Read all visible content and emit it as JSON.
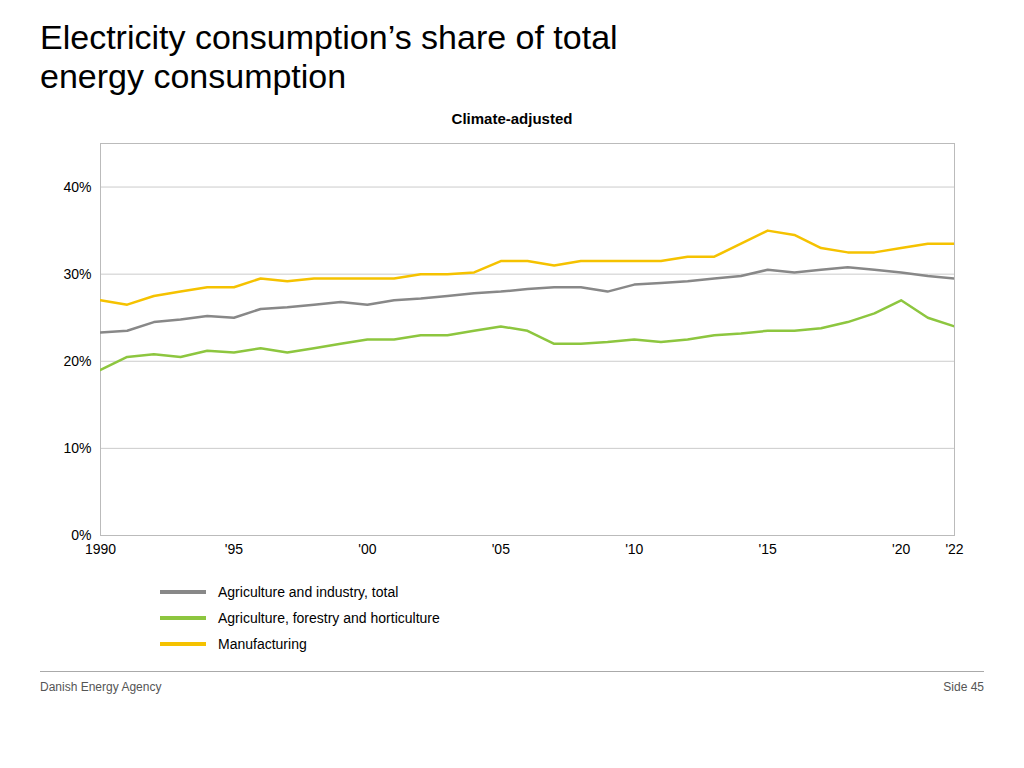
{
  "chart_data": {
    "type": "line",
    "title": "Electricity consumption’s share of total\nenergy consumption",
    "subtitle": "Climate-adjusted",
    "x": [
      1990,
      1991,
      1992,
      1993,
      1994,
      1995,
      1996,
      1997,
      1998,
      1999,
      2000,
      2001,
      2002,
      2003,
      2004,
      2005,
      2006,
      2007,
      2008,
      2009,
      2010,
      2011,
      2012,
      2013,
      2014,
      2015,
      2016,
      2017,
      2018,
      2019,
      2020,
      2021,
      2022
    ],
    "series": [
      {
        "name": "Agriculture and industry, total",
        "color": "#888888",
        "values": [
          23.3,
          23.5,
          24.5,
          24.8,
          25.2,
          25.0,
          26.0,
          26.2,
          26.5,
          26.8,
          26.5,
          27.0,
          27.2,
          27.5,
          27.8,
          28.0,
          28.3,
          28.5,
          28.5,
          28.0,
          28.8,
          29.0,
          29.2,
          29.5,
          29.8,
          30.5,
          30.2,
          30.5,
          30.8,
          30.5,
          30.2,
          29.8,
          29.5
        ]
      },
      {
        "name": "Agriculture, forestry and horticulture",
        "color": "#8dc63f",
        "values": [
          19.0,
          20.5,
          20.8,
          20.5,
          21.2,
          21.0,
          21.5,
          21.0,
          21.5,
          22.0,
          22.5,
          22.5,
          23.0,
          23.0,
          23.5,
          24.0,
          23.5,
          22.0,
          22.0,
          22.2,
          22.5,
          22.2,
          22.5,
          23.0,
          23.2,
          23.5,
          23.5,
          23.8,
          24.5,
          25.5,
          27.0,
          25.0,
          24.0
        ]
      },
      {
        "name": "Manufacturing",
        "color": "#f5c200",
        "values": [
          27.0,
          26.5,
          27.5,
          28.0,
          28.5,
          28.5,
          29.5,
          29.2,
          29.5,
          29.5,
          29.5,
          29.5,
          30.0,
          30.0,
          30.2,
          31.5,
          31.5,
          31.0,
          31.5,
          31.5,
          31.5,
          31.5,
          32.0,
          32.0,
          33.5,
          35.0,
          34.5,
          33.0,
          32.5,
          32.5,
          33.0,
          33.5,
          33.5
        ]
      }
    ],
    "xlim": [
      1990,
      2022
    ],
    "xticks": [
      1990,
      {
        "value": 1995,
        "label": "'95"
      },
      {
        "value": 2000,
        "label": "'00"
      },
      {
        "value": 2005,
        "label": "'05"
      },
      {
        "value": 2010,
        "label": "'10"
      },
      {
        "value": 2015,
        "label": "'15"
      },
      {
        "value": 2020,
        "label": "'20"
      },
      {
        "value": 2022,
        "label": "'22"
      }
    ],
    "ylim": [
      0,
      45
    ],
    "yticks": [
      {
        "value": 0,
        "label": "0%"
      },
      {
        "value": 10,
        "label": "10%"
      },
      {
        "value": 20,
        "label": "20%"
      },
      {
        "value": 30,
        "label": "30%"
      },
      {
        "value": 40,
        "label": "40%"
      }
    ],
    "grid": true,
    "annotations": [
      "Danish Energy Agency",
      "Side 45"
    ]
  }
}
